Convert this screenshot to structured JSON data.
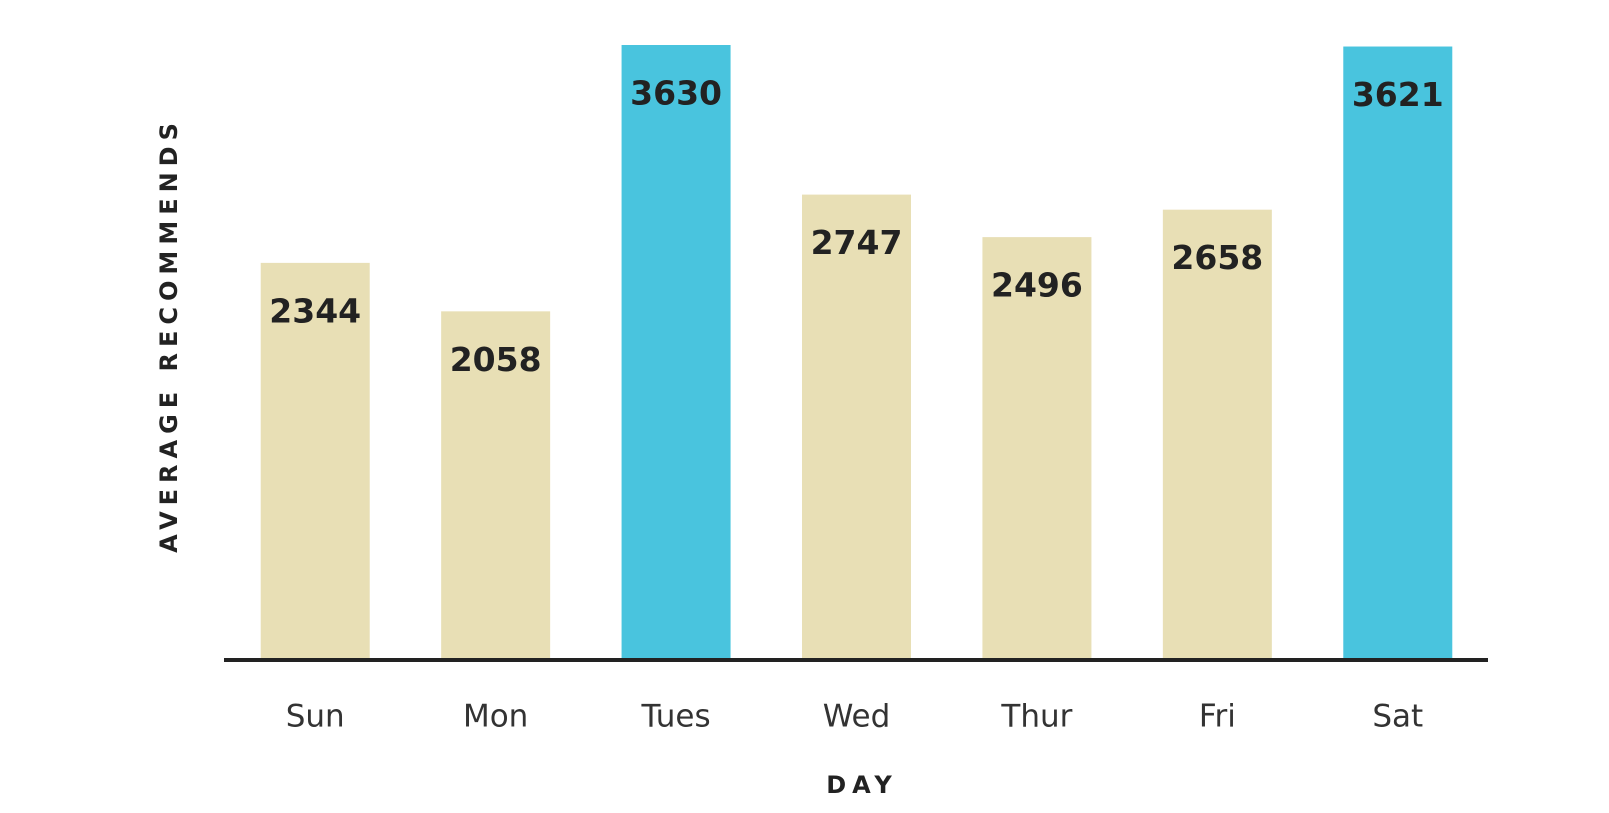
{
  "chart_data": {
    "type": "bar",
    "x_label": "DAY",
    "y_label": "AVERAGE RECOMMENDS",
    "categories": [
      "Sun",
      "Mon",
      "Tues",
      "Wed",
      "Thur",
      "Fri",
      "Sat"
    ],
    "values": [
      2344,
      2058,
      3630,
      2747,
      2496,
      2658,
      3621
    ],
    "colors": [
      "#e8dfb5",
      "#e8dfb5",
      "#49c4de",
      "#e8dfb5",
      "#e8dfb5",
      "#e8dfb5",
      "#49c4de"
    ],
    "ylim": [
      0,
      3630
    ]
  }
}
